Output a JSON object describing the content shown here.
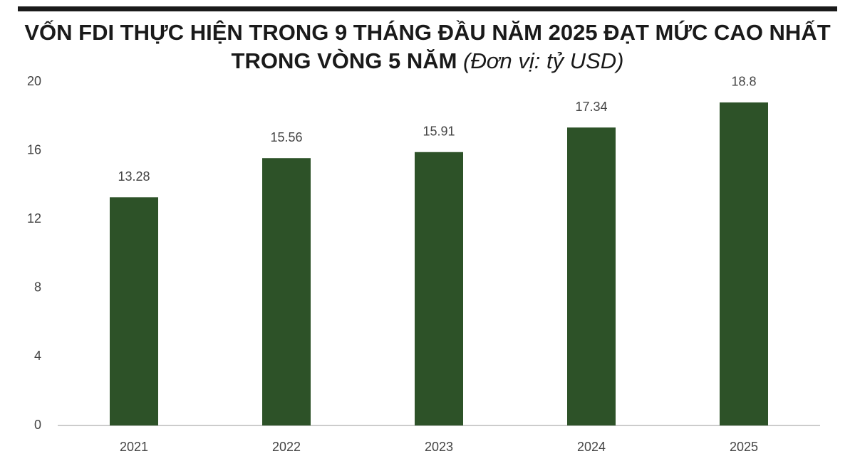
{
  "chart_data": {
    "type": "bar",
    "title": "VỐN FDI THỰC HIỆN TRONG 9 THÁNG ĐẦU NĂM 2025 ĐẠT MỨC CAO NHẤT TRONG VÒNG 5 NĂM",
    "unit": "(Đơn vị: tỷ USD)",
    "categories": [
      "2021",
      "2022",
      "2023",
      "2024",
      "2025"
    ],
    "values": [
      13.28,
      15.56,
      15.91,
      17.34,
      18.8
    ],
    "color": "#2d5228",
    "ylim": [
      0,
      20
    ],
    "yticks": [
      0,
      4,
      8,
      12,
      16,
      20
    ],
    "grid": false
  }
}
